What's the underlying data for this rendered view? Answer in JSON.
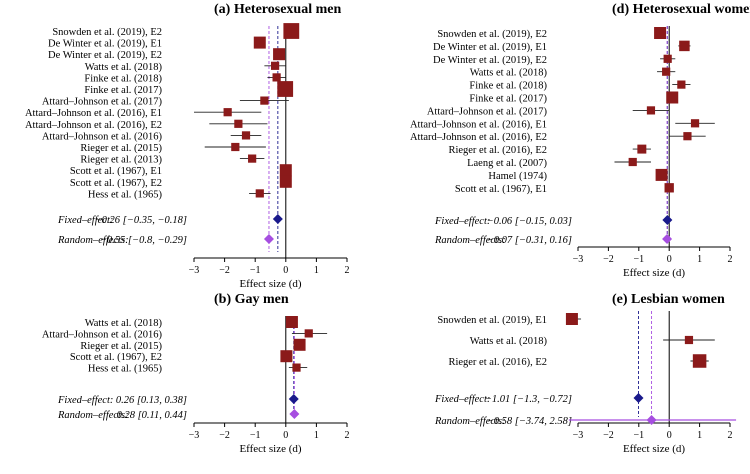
{
  "colors": {
    "study": "#8b1a1a",
    "fixed": "#1a1a8c",
    "random": "#a64ee0",
    "axis": "#000000",
    "random_line": "#a64ee0",
    "fixed_line": "#1a1a8c"
  },
  "chart_data": [
    {
      "id": "a",
      "type": "forest",
      "title": "(a) Heterosexual men",
      "xlabel": "Effect size (d)",
      "xlim": [
        -3,
        2
      ],
      "xticks": [
        -3,
        -2,
        -1,
        0,
        1,
        2
      ],
      "studies": [
        {
          "label": "Snowden et al. (2019), E2",
          "est": 0.18,
          "lo": 0.08,
          "hi": 0.28,
          "w": 3
        },
        {
          "label": "De Winter et al. (2019), E1",
          "est": -0.85,
          "lo": -1.0,
          "hi": -0.7,
          "w": 2
        },
        {
          "label": "De Winter et al. (2019), E2",
          "est": -0.22,
          "lo": -0.35,
          "hi": -0.1,
          "w": 2
        },
        {
          "label": "Watts et al. (2018)",
          "est": -0.35,
          "lo": -0.7,
          "hi": 0.0,
          "w": 1
        },
        {
          "label": "Finke et al. (2018)",
          "est": -0.3,
          "lo": -0.6,
          "hi": 0.0,
          "w": 1
        },
        {
          "label": "Finke et al. (2017)",
          "est": -0.02,
          "lo": -0.15,
          "hi": 0.1,
          "w": 3
        },
        {
          "label": "Attard–Johnson et al. (2017)",
          "est": -0.7,
          "lo": -1.5,
          "hi": 0.1,
          "w": 1
        },
        {
          "label": "Attard–Johnson et al. (2016), E1",
          "est": -1.9,
          "lo": -3.0,
          "hi": -0.8,
          "w": 1
        },
        {
          "label": "Attard–Johnson et al. (2016), E2",
          "est": -1.55,
          "lo": -2.5,
          "hi": -0.6,
          "w": 1
        },
        {
          "label": "Attard–Johnson et al. (2016)",
          "est": -1.3,
          "lo": -1.8,
          "hi": -0.8,
          "w": 1
        },
        {
          "label": "Rieger et al. (2015)",
          "est": -1.65,
          "lo": -2.65,
          "hi": -0.65,
          "w": 1
        },
        {
          "label": "Rieger et al. (2013)",
          "est": -1.1,
          "lo": -1.5,
          "hi": -0.7,
          "w": 1
        },
        {
          "label": "Scott et al. (1967), E1",
          "est": 0.0,
          "lo": -0.12,
          "hi": 0.12,
          "w": 2
        },
        {
          "label": "Scott et al. (1967), E2",
          "est": 0.0,
          "lo": -0.12,
          "hi": 0.12,
          "w": 2
        },
        {
          "label": "Hess et al. (1965)",
          "est": -0.85,
          "lo": -1.2,
          "hi": -0.5,
          "w": 1
        }
      ],
      "fixed": {
        "label": "Fixed–effect:",
        "text": "−0.26 [−0.35, −0.18]",
        "est": -0.26,
        "lo": -0.35,
        "hi": -0.18
      },
      "random": {
        "label": "Random–effects:",
        "text": "−0.55 [−0.8, −0.29]",
        "est": -0.55,
        "lo": -0.8,
        "hi": -0.29
      }
    },
    {
      "id": "b",
      "type": "forest",
      "title": "(b) Gay men",
      "xlabel": "Effect size (d)",
      "xlim": [
        -3,
        2
      ],
      "xticks": [
        -3,
        -2,
        -1,
        0,
        1,
        2
      ],
      "studies": [
        {
          "label": "Watts et al. (2018)",
          "est": 0.2,
          "lo": 0.05,
          "hi": 0.35,
          "w": 2
        },
        {
          "label": "Attard–Johnson et al. (2016)",
          "est": 0.75,
          "lo": 0.2,
          "hi": 1.35,
          "w": 1
        },
        {
          "label": "Rieger et al. (2015)",
          "est": 0.45,
          "lo": 0.3,
          "hi": 0.6,
          "w": 2
        },
        {
          "label": "Scott et al. (1967), E2",
          "est": 0.02,
          "lo": -0.12,
          "hi": 0.15,
          "w": 2
        },
        {
          "label": "Hess et al. (1965)",
          "est": 0.35,
          "lo": 0.1,
          "hi": 0.7,
          "w": 1
        }
      ],
      "fixed": {
        "label": "Fixed–effect:",
        "text": "0.26 [0.13, 0.38]",
        "est": 0.26,
        "lo": 0.13,
        "hi": 0.38
      },
      "random": {
        "label": "Random–effects:",
        "text": "0.28 [0.11, 0.44]",
        "est": 0.28,
        "lo": 0.11,
        "hi": 0.44
      }
    },
    {
      "id": "d",
      "type": "forest",
      "title": "(d) Heterosexual women",
      "xlabel": "Effect size (d)",
      "xlim": [
        -3,
        2
      ],
      "xticks": [
        -3,
        -2,
        -1,
        0,
        1,
        2
      ],
      "studies": [
        {
          "label": "Snowden et al. (2019), E2",
          "est": -0.3,
          "lo": -0.42,
          "hi": -0.2,
          "w": 2
        },
        {
          "label": "De Winter et al. (2019), E1",
          "est": 0.5,
          "lo": 0.3,
          "hi": 0.7,
          "w": 1.6
        },
        {
          "label": "De Winter et al. (2019), E2",
          "est": -0.05,
          "lo": -0.3,
          "hi": 0.2,
          "w": 1
        },
        {
          "label": "Watts et al. (2018)",
          "est": -0.1,
          "lo": -0.4,
          "hi": 0.2,
          "w": 1
        },
        {
          "label": "Finke et al. (2018)",
          "est": 0.4,
          "lo": 0.1,
          "hi": 0.7,
          "w": 1
        },
        {
          "label": "Finke et al. (2017)",
          "est": 0.1,
          "lo": -0.02,
          "hi": 0.22,
          "w": 2
        },
        {
          "label": "Attard–Johnson et al. (2017)",
          "est": -0.6,
          "lo": -1.2,
          "hi": 0.0,
          "w": 1
        },
        {
          "label": "Attard–Johnson et al. (2016), E1",
          "est": 0.85,
          "lo": 0.2,
          "hi": 1.5,
          "w": 1
        },
        {
          "label": "Attard–Johnson et al. (2016), E2",
          "est": 0.6,
          "lo": 0.0,
          "hi": 1.2,
          "w": 1
        },
        {
          "label": "Rieger et al. (2016), E2",
          "est": -0.9,
          "lo": -1.2,
          "hi": -0.6,
          "w": 1.2
        },
        {
          "label": "Laeng et al. (2007)",
          "est": -1.2,
          "lo": -1.8,
          "hi": -0.6,
          "w": 1
        },
        {
          "label": "Hamel (1974)",
          "est": -0.25,
          "lo": -0.4,
          "hi": -0.1,
          "w": 2
        },
        {
          "label": "Scott et al. (1967), E1",
          "est": 0.0,
          "lo": -0.12,
          "hi": 0.12,
          "w": 1.3
        }
      ],
      "fixed": {
        "label": "Fixed–effect:",
        "text": "−0.06 [−0.15, 0.03]",
        "est": -0.06,
        "lo": -0.15,
        "hi": 0.03
      },
      "random": {
        "label": "Random–effects:",
        "text": "−0.07 [−0.31, 0.16]",
        "est": -0.07,
        "lo": -0.31,
        "hi": 0.16
      }
    },
    {
      "id": "e",
      "type": "forest",
      "title": "(e) Lesbian women",
      "xlabel": "Effect size (d)",
      "xlim": [
        -3,
        2
      ],
      "xticks": [
        -3,
        -2,
        -1,
        0,
        1,
        2
      ],
      "studies": [
        {
          "label": "Snowden et al. (2019), E1",
          "est": -3.2,
          "lo": -3.5,
          "hi": -2.9,
          "w": 2
        },
        {
          "label": "Watts et al. (2018)",
          "est": 0.65,
          "lo": -0.2,
          "hi": 1.5,
          "w": 1
        },
        {
          "label": "Rieger et al. (2016), E2",
          "est": 1.0,
          "lo": 0.7,
          "hi": 1.3,
          "w": 2.4
        }
      ],
      "fixed": {
        "label": "Fixed–effect:",
        "text": "−1.01 [−1.3, −0.72]",
        "est": -1.01,
        "lo": -1.3,
        "hi": -0.72
      },
      "random": {
        "label": "Random–effects:",
        "text": "−0.58 [−3.74, 2.58]",
        "est": -0.58,
        "lo": -3.74,
        "hi": 2.58
      }
    }
  ]
}
